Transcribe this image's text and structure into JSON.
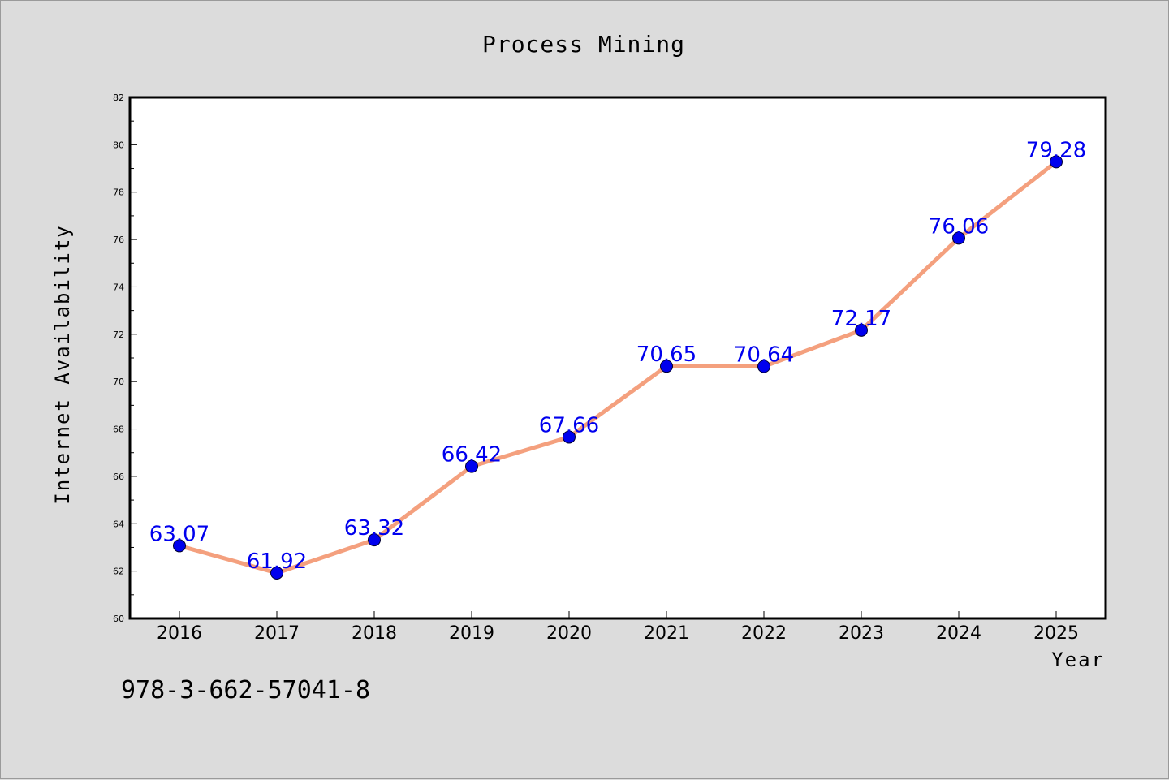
{
  "chart_data": {
    "type": "line",
    "title": "Process Mining",
    "xlabel": "Year",
    "ylabel": "Internet Availability",
    "categories": [
      "2016",
      "2017",
      "2018",
      "2019",
      "2020",
      "2021",
      "2022",
      "2023",
      "2024",
      "2025"
    ],
    "series": [
      {
        "values": [
          63.07,
          61.92,
          63.32,
          66.42,
          67.66,
          70.65,
          70.64,
          72.17,
          76.06,
          79.28
        ]
      }
    ],
    "value_labels": [
      "63.07",
      "61.92",
      "63.32",
      "66.42",
      "67.66",
      "70.65",
      "70.64",
      "72.17",
      "76.06",
      "79.28"
    ],
    "yticks": [
      "60",
      "62",
      "64",
      "66",
      "68",
      "70",
      "72",
      "74",
      "76",
      "78",
      "80",
      "82"
    ],
    "ylim": [
      60,
      82
    ],
    "grid": false,
    "legend": "none",
    "colors": {
      "line": "#f4a07e",
      "marker": "#0000ee",
      "label": "#0000ee",
      "background": "#dcdcdc",
      "plot_background": "#ffffff"
    }
  },
  "footer": {
    "code": "978-3-662-57041-8"
  }
}
